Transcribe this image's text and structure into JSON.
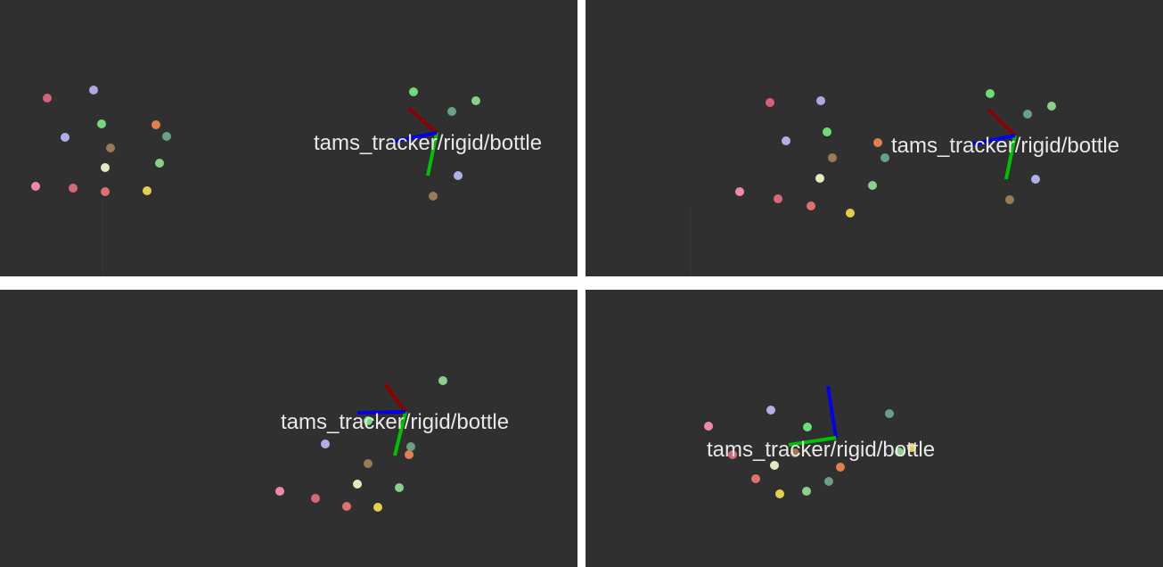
{
  "frame_label": "tams_tracker/rigid/bottle",
  "axis_colors": {
    "x": "#8b0000",
    "y": "#00c000",
    "z": "#0000ee"
  },
  "background_color": "#303030",
  "marker_colors": {
    "pink": "#e26b8f",
    "rose": "#d46a78",
    "lavender": "#b0b0e8",
    "green": "#6fdc7a",
    "orange": "#e08050",
    "teal": "#6aa085",
    "brown": "#9a7a55",
    "cream": "#e8e8c0",
    "lightgreen": "#8ad08a",
    "salmon": "#e07070",
    "yellow": "#e0d050",
    "lightpink": "#f08aa8"
  },
  "views": [
    {
      "id": "top-left"
    },
    {
      "id": "top-right"
    },
    {
      "id": "bottom-left"
    },
    {
      "id": "bottom-right"
    }
  ]
}
